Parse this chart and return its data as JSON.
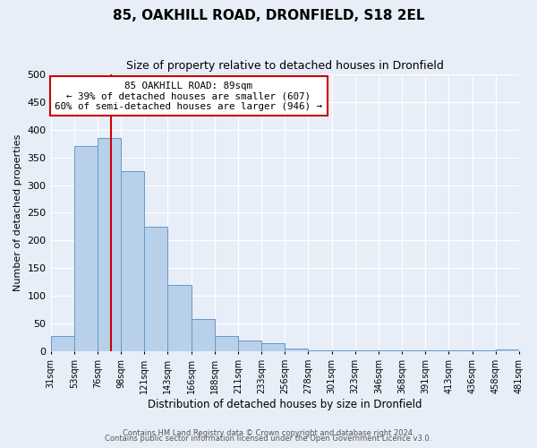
{
  "title": "85, OAKHILL ROAD, DRONFIELD, S18 2EL",
  "subtitle": "Size of property relative to detached houses in Dronfield",
  "xlabel": "Distribution of detached houses by size in Dronfield",
  "ylabel": "Number of detached properties",
  "bar_values": [
    28,
    370,
    385,
    325,
    225,
    120,
    58,
    28,
    20,
    15,
    5,
    1,
    1,
    1,
    1,
    1,
    1,
    1,
    1,
    3
  ],
  "bin_labels": [
    "31sqm",
    "53sqm",
    "76sqm",
    "98sqm",
    "121sqm",
    "143sqm",
    "166sqm",
    "188sqm",
    "211sqm",
    "233sqm",
    "256sqm",
    "278sqm",
    "301sqm",
    "323sqm",
    "346sqm",
    "368sqm",
    "391sqm",
    "413sqm",
    "436sqm",
    "458sqm",
    "481sqm"
  ],
  "sqm_edges": [
    31,
    53,
    76,
    98,
    121,
    143,
    166,
    188,
    211,
    233,
    256,
    278,
    301,
    323,
    346,
    368,
    391,
    413,
    436,
    458,
    481
  ],
  "bar_color": "#b8d0ea",
  "bar_edge_color": "#6699cc",
  "bg_color": "#e8eef8",
  "plot_bg_color": "#e8eef8",
  "grid_color": "#ffffff",
  "vline_sqm": 89,
  "vline_color": "#cc0000",
  "annotation_title": "85 OAKHILL ROAD: 89sqm",
  "annotation_line1": "← 39% of detached houses are smaller (607)",
  "annotation_line2": "60% of semi-detached houses are larger (946) →",
  "annotation_box_color": "#ffffff",
  "annotation_box_edge_color": "#cc0000",
  "ylim": [
    0,
    500
  ],
  "yticks": [
    0,
    50,
    100,
    150,
    200,
    250,
    300,
    350,
    400,
    450,
    500
  ],
  "footer1": "Contains HM Land Registry data © Crown copyright and database right 2024.",
  "footer2": "Contains public sector information licensed under the Open Government Licence v3.0."
}
